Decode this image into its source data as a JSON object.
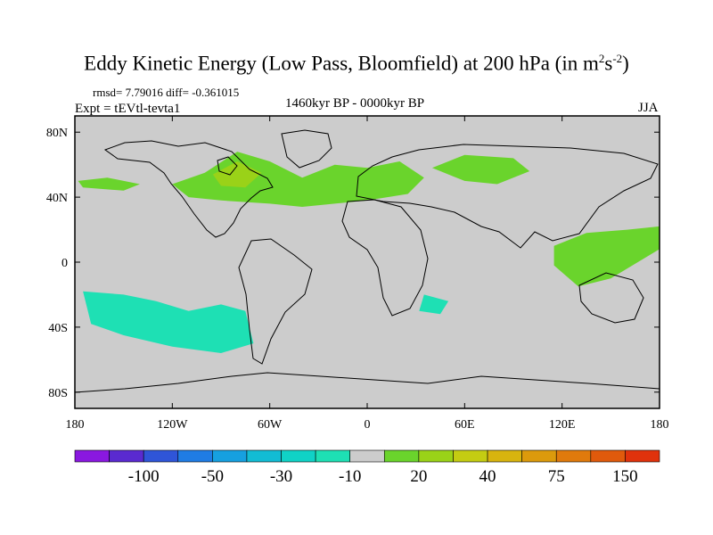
{
  "figure": {
    "title_main": "Eddy Kinetic Energy (Low Pass, Bloomfield) at 200 hPa (in m",
    "title_sup1": "2",
    "title_mid": "s",
    "title_sup2": "-2",
    "title_end": ")",
    "stats": "rmsd= 7.79016 diff= -0.361015",
    "experiment": "Expt = tEVtl-tevta1",
    "period": "1460kyr BP - 0000kyr BP",
    "season": "JJA"
  },
  "chart_data": {
    "type": "heatmap",
    "projection": "cylindrical-equidistant",
    "variable": "Eddy Kinetic Energy difference, 200 hPa",
    "units": "m^2 s^-2",
    "x_range": [
      -180,
      180
    ],
    "y_range": [
      -90,
      90
    ],
    "x_ticks": [
      {
        "value": -180,
        "label": "180"
      },
      {
        "value": -120,
        "label": "120W"
      },
      {
        "value": -60,
        "label": "60W"
      },
      {
        "value": 0,
        "label": "0"
      },
      {
        "value": 60,
        "label": "60E"
      },
      {
        "value": 120,
        "label": "120E"
      },
      {
        "value": 180,
        "label": "180"
      }
    ],
    "y_ticks": [
      {
        "value": 80,
        "label": "80N"
      },
      {
        "value": 40,
        "label": "40N"
      },
      {
        "value": 0,
        "label": "0"
      },
      {
        "value": -40,
        "label": "40S"
      },
      {
        "value": -80,
        "label": "80S"
      }
    ],
    "background_color": "#cccccc",
    "colorbar": {
      "colors": [
        "#8a18e0",
        "#5a2ad0",
        "#2f55d8",
        "#1f7ce4",
        "#16a0e0",
        "#12bcd4",
        "#10d2c6",
        "#1ee0b4",
        "#cccccc",
        "#6ad42c",
        "#9ad218",
        "#c4cc12",
        "#d8b40e",
        "#dc9a0c",
        "#e07a0c",
        "#e05a0c",
        "#e0320c"
      ],
      "labels": [
        {
          "after_index": 1,
          "text": "-100"
        },
        {
          "after_index": 3,
          "text": "-50"
        },
        {
          "after_index": 5,
          "text": "-30"
        },
        {
          "after_index": 7,
          "text": "-10"
        },
        {
          "after_index": 9,
          "text": "20"
        },
        {
          "after_index": 11,
          "text": "40"
        },
        {
          "after_index": 13,
          "text": "75"
        },
        {
          "after_index": 15,
          "text": "150"
        }
      ]
    },
    "regions": [
      {
        "name": "north-atlantic-europe-positive",
        "level": 20,
        "color": "#6ad42c",
        "lonlat": [
          [
            -120,
            48
          ],
          [
            -100,
            55
          ],
          [
            -80,
            68
          ],
          [
            -60,
            62
          ],
          [
            -40,
            52
          ],
          [
            -20,
            60
          ],
          [
            0,
            58
          ],
          [
            20,
            62
          ],
          [
            35,
            52
          ],
          [
            25,
            42
          ],
          [
            0,
            38
          ],
          [
            -20,
            36
          ],
          [
            -40,
            34
          ],
          [
            -60,
            36
          ],
          [
            -90,
            38
          ],
          [
            -110,
            40
          ]
        ]
      },
      {
        "name": "eurasia-positive",
        "level": 20,
        "color": "#6ad42c",
        "lonlat": [
          [
            40,
            58
          ],
          [
            60,
            66
          ],
          [
            90,
            64
          ],
          [
            100,
            56
          ],
          [
            80,
            48
          ],
          [
            60,
            50
          ]
        ]
      },
      {
        "name": "north-pacific-positive",
        "level": 20,
        "color": "#6ad42c",
        "lonlat": [
          [
            -178,
            50
          ],
          [
            -160,
            52
          ],
          [
            -140,
            48
          ],
          [
            -150,
            44
          ],
          [
            -175,
            46
          ]
        ]
      },
      {
        "name": "hudson-bay-positive",
        "level": 40,
        "color": "#9ad218",
        "lonlat": [
          [
            -95,
            54
          ],
          [
            -80,
            62
          ],
          [
            -65,
            55
          ],
          [
            -75,
            46
          ],
          [
            -90,
            47
          ]
        ]
      },
      {
        "name": "south-pacific-negative",
        "level": -10,
        "color": "#1ee0b4",
        "lonlat": [
          [
            -175,
            -18
          ],
          [
            -150,
            -20
          ],
          [
            -130,
            -24
          ],
          [
            -110,
            -30
          ],
          [
            -90,
            -26
          ],
          [
            -75,
            -30
          ],
          [
            -70,
            -50
          ],
          [
            -90,
            -56
          ],
          [
            -120,
            -52
          ],
          [
            -150,
            -45
          ],
          [
            -170,
            -38
          ]
        ]
      },
      {
        "name": "west-pacific-positive",
        "level": 20,
        "color": "#6ad42c",
        "lonlat": [
          [
            115,
            10
          ],
          [
            135,
            18
          ],
          [
            160,
            20
          ],
          [
            180,
            22
          ],
          [
            180,
            8
          ],
          [
            150,
            -10
          ],
          [
            130,
            -15
          ],
          [
            115,
            -2
          ]
        ]
      },
      {
        "name": "indian-ocean-negative",
        "level": -10,
        "color": "#1ee0b4",
        "lonlat": [
          [
            35,
            -20
          ],
          [
            50,
            -24
          ],
          [
            45,
            -32
          ],
          [
            32,
            -30
          ]
        ]
      }
    ]
  }
}
